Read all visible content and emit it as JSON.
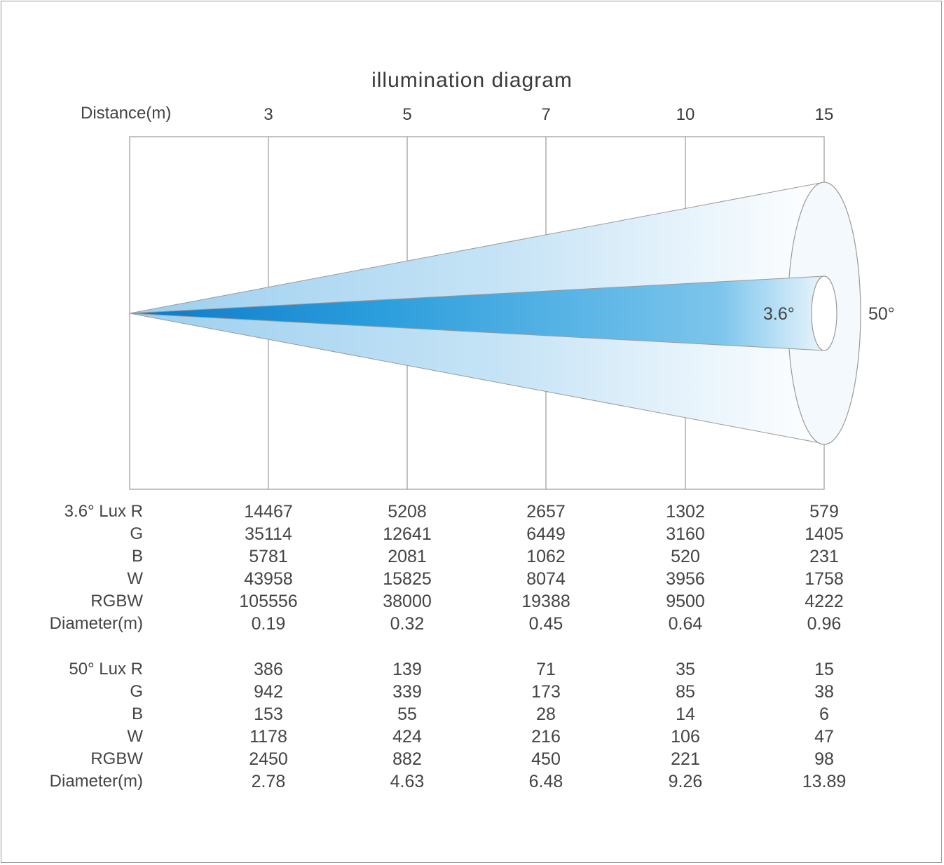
{
  "title": "illumination  diagram",
  "distance_label": "Distance(m)",
  "distances": [
    "3",
    "5",
    "7",
    "10",
    "15"
  ],
  "beams": [
    {
      "angle": "3.6°",
      "rows": [
        {
          "label": "3.6°  Lux  R",
          "values": [
            "14467",
            "5208",
            "2657",
            "1302",
            "579"
          ]
        },
        {
          "label": "G",
          "values": [
            "35114",
            "12641",
            "6449",
            "3160",
            "1405"
          ]
        },
        {
          "label": "B",
          "values": [
            "5781",
            "2081",
            "1062",
            "520",
            "231"
          ]
        },
        {
          "label": "W",
          "values": [
            "43958",
            "15825",
            "8074",
            "3956",
            "1758"
          ]
        },
        {
          "label": "RGBW",
          "values": [
            "105556",
            "38000",
            "19388",
            "9500",
            "4222"
          ]
        },
        {
          "label": "Diameter(m)",
          "values": [
            "0.19",
            "0.32",
            "0.45",
            "0.64",
            "0.96"
          ]
        }
      ]
    },
    {
      "angle": "50°",
      "rows": [
        {
          "label": "50°  Lux  R",
          "values": [
            "386",
            "139",
            "71",
            "35",
            "15"
          ]
        },
        {
          "label": "G",
          "values": [
            "942",
            "339",
            "173",
            "85",
            "38"
          ]
        },
        {
          "label": "B",
          "values": [
            "153",
            "55",
            "28",
            "14",
            "6"
          ]
        },
        {
          "label": "W",
          "values": [
            "1178",
            "424",
            "216",
            "106",
            "47"
          ]
        },
        {
          "label": "RGBW",
          "values": [
            "2450",
            "882",
            "450",
            "221",
            "98"
          ]
        },
        {
          "label": "Diameter(m)",
          "values": [
            "2.78",
            "4.63",
            "6.48",
            "9.26",
            "13.89"
          ]
        }
      ]
    }
  ],
  "colors": {
    "narrow_beam": "#2a9ddc",
    "wide_beam": "#bfe0f5",
    "lines": "#9a9a9a"
  }
}
